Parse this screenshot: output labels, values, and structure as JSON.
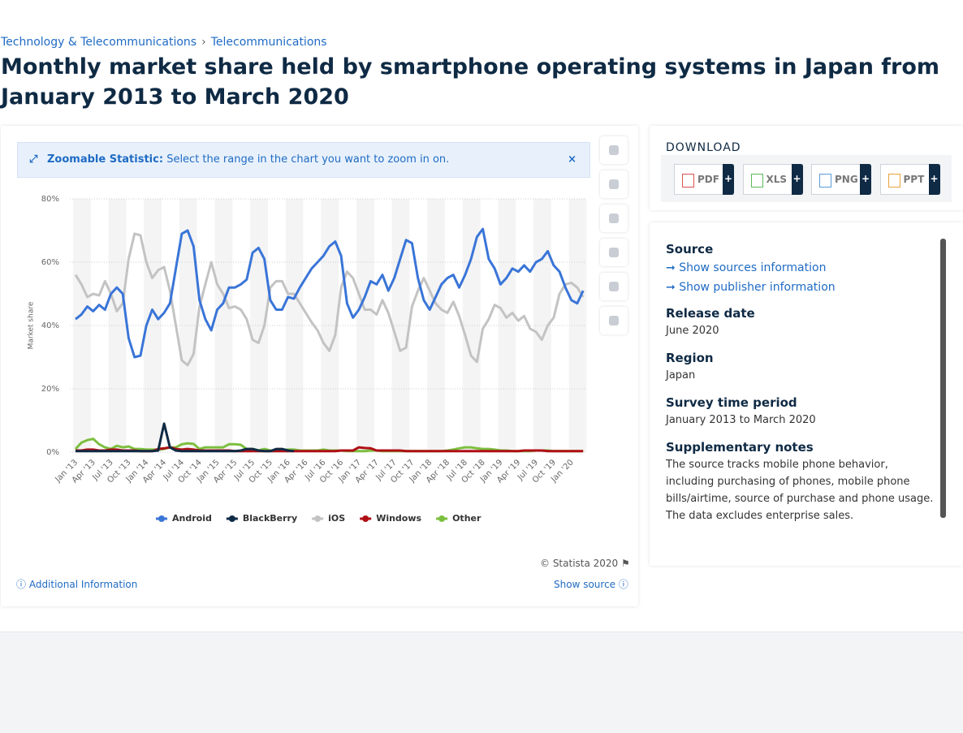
{
  "breadcrumb": [
    "Technology & Telecommunications",
    "Telecommunications"
  ],
  "title": "Monthly market share held by smartphone operating systems in Japan from January 2013 to March 2020",
  "zoom_banner": {
    "label": "Zoomable Statistic:",
    "text": "Select the range in the chart you want to zoom in on."
  },
  "chart_data": {
    "type": "line",
    "y_label": "Market share",
    "categories": [
      "Jan '13",
      null,
      null,
      "Apr '13",
      null,
      null,
      "Jul '13",
      null,
      null,
      "Oct '13",
      null,
      null,
      "Jan '14",
      null,
      null,
      "Apr '14",
      null,
      null,
      "Jul '14",
      null,
      null,
      "Oct '14",
      null,
      null,
      "Jan '15",
      null,
      null,
      "Apr '15",
      null,
      null,
      "Jul '15",
      null,
      null,
      "Oct '15",
      null,
      null,
      "Jan '16",
      null,
      null,
      "Apr '16",
      null,
      null,
      "Jul '16",
      null,
      null,
      "Oct '16",
      null,
      null,
      "Jan '17",
      null,
      null,
      "Apr '17",
      null,
      null,
      "Jul '17",
      null,
      null,
      "Oct '17",
      null,
      null,
      "Jan '18",
      null,
      null,
      "Apr '18",
      null,
      null,
      "Jul '18",
      null,
      null,
      "Oct '18",
      null,
      null,
      "Jan '19",
      null,
      null,
      "Apr '19",
      null,
      null,
      "Jul '19",
      null,
      null,
      "Oct '19",
      null,
      null,
      "Jan '20",
      null,
      null
    ],
    "series": [
      {
        "name": "Android",
        "color": "#3a75d8",
        "values": [
          42,
          43.5,
          46,
          44.5,
          46.5,
          45,
          50,
          52,
          50,
          36,
          30,
          30.5,
          40,
          45,
          42,
          44,
          47,
          58,
          69,
          70,
          65,
          48,
          42,
          38.5,
          45,
          47,
          52,
          52,
          53,
          54.5,
          63,
          64.5,
          61,
          48,
          45,
          45,
          49,
          48.5,
          52,
          55,
          58,
          60,
          62,
          65,
          66.5,
          62,
          47,
          42.5,
          45,
          49,
          54,
          53,
          56,
          51,
          55,
          61,
          67,
          66,
          55,
          48,
          45,
          49,
          53,
          55,
          56,
          52,
          56,
          61,
          68,
          70.5,
          61,
          58,
          53,
          55,
          58,
          57,
          59,
          57,
          60,
          61,
          63.5,
          59,
          57,
          52,
          48,
          47,
          51
        ]
      },
      {
        "name": "BlackBerry",
        "color": "#0f2a44",
        "values": [
          0.3,
          0.3,
          0.3,
          0.3,
          0.3,
          0.3,
          0.3,
          0.3,
          0.3,
          0.3,
          0.3,
          0.3,
          0.3,
          0.3,
          0.5,
          9,
          1.5,
          0.5,
          0.3,
          0.3,
          0.3,
          0.3,
          0.3,
          0.3,
          0.3,
          0.3,
          0.3,
          0.3,
          0.5,
          1,
          1,
          0.5,
          0.3,
          0.3,
          1,
          1,
          0.5,
          0.3,
          null,
          null,
          null,
          null,
          null,
          null,
          null,
          null,
          null,
          null,
          null,
          null,
          null,
          null,
          null,
          null,
          null,
          null,
          null,
          null,
          null,
          null,
          null,
          null,
          null,
          null,
          null,
          null,
          null,
          null,
          null,
          null,
          null,
          null,
          null,
          null,
          null,
          null,
          null,
          null,
          null,
          null,
          null,
          null,
          null,
          null,
          null,
          null,
          null
        ]
      },
      {
        "name": "iOS",
        "color": "#c3c3c3",
        "values": [
          56,
          53,
          49,
          50,
          49.5,
          54,
          50,
          44.5,
          47,
          61,
          69,
          68.5,
          60,
          55,
          57.5,
          58.5,
          51,
          40,
          29,
          27.5,
          31,
          46,
          53,
          60,
          53,
          50,
          45.5,
          46,
          45,
          42,
          35.5,
          34.5,
          40,
          52,
          54,
          54,
          50,
          50,
          47,
          44,
          41,
          38.5,
          34.5,
          32,
          37,
          52,
          57,
          55,
          50,
          45,
          45,
          43.5,
          48,
          44,
          38,
          32,
          33,
          46,
          51,
          55,
          51,
          47,
          45,
          44,
          47.5,
          43,
          37,
          30.5,
          28.5,
          39,
          42,
          46.5,
          45.5,
          42.5,
          44,
          41.5,
          43,
          39,
          38,
          35.5,
          40,
          42.5,
          50,
          53,
          53.5,
          52,
          49
        ]
      },
      {
        "name": "Windows",
        "color": "#b00e15",
        "values": [
          0.5,
          0.5,
          0.8,
          0.8,
          0.5,
          0.5,
          0.8,
          0.8,
          0.5,
          0.5,
          0.5,
          0.3,
          0.3,
          0.3,
          1,
          1.2,
          1.5,
          1,
          0.8,
          1,
          0.8,
          0.5,
          0.5,
          0.5,
          0.5,
          0.5,
          0.5,
          0.3,
          0.3,
          0.3,
          0.3,
          0.3,
          0.3,
          0.3,
          0.3,
          0.3,
          0.3,
          0.3,
          0.3,
          0.3,
          0.3,
          0.3,
          0.3,
          0.3,
          0.3,
          0.5,
          0.5,
          0.5,
          1.5,
          1.3,
          1.2,
          0.5,
          0.5,
          0.5,
          0.5,
          0.5,
          0.3,
          0.3,
          0.3,
          0.3,
          0.3,
          0.3,
          0.3,
          0.3,
          0.3,
          0.3,
          0.3,
          0.3,
          0.3,
          0.3,
          0.3,
          0.3,
          0.3,
          0.3,
          0.3,
          0.3,
          0.5,
          0.5,
          0.5,
          0.5,
          0.3,
          0.3,
          0.3,
          0.3,
          0.3,
          0.3,
          0.3
        ]
      },
      {
        "name": "Other",
        "color": "#7cbf3f",
        "values": [
          1,
          3,
          3.8,
          4.2,
          2.5,
          1.5,
          1,
          2,
          1.5,
          1.8,
          1,
          1,
          0.8,
          0.8,
          0.8,
          1,
          1.5,
          1.5,
          2.5,
          2.8,
          2.6,
          1,
          1.5,
          1.5,
          1.5,
          1.5,
          2.5,
          2.5,
          2.3,
          1,
          1,
          0.5,
          1,
          0.5,
          0.5,
          0.5,
          0.8,
          0.8,
          0.5,
          0.5,
          0.5,
          0.5,
          0.8,
          0.5,
          0.5,
          0.5,
          0.3,
          0.3,
          0.3,
          0.3,
          0.5,
          0.5,
          0.3,
          0.3,
          0.3,
          0.3,
          0.3,
          0.3,
          0.3,
          0.3,
          0.3,
          0.3,
          0.3,
          0.5,
          0.8,
          1.2,
          1.5,
          1.5,
          1.2,
          1,
          1,
          0.8,
          0.5,
          0.5,
          0.3,
          0.3,
          0.3,
          0.3,
          0.5,
          0.5,
          0.5,
          0.3,
          0.3,
          0.3,
          0.3,
          0.3,
          0.3
        ]
      }
    ],
    "ylim": [
      0,
      80
    ],
    "yticks": [
      {
        "value": 0,
        "label": "0%"
      },
      {
        "value": 20,
        "label": "20%"
      },
      {
        "value": 40,
        "label": "40%"
      },
      {
        "value": 60,
        "label": "60%"
      },
      {
        "value": 80,
        "label": "80%"
      }
    ],
    "grid": true,
    "legend": "bottom"
  },
  "credit": "© Statista 2020",
  "additional_info": "Additional Information",
  "show_source": "Show source",
  "download": {
    "title": "DOWNLOAD",
    "formats": [
      "PDF",
      "XLS",
      "PNG",
      "PPT"
    ]
  },
  "details": {
    "source_heading": "Source",
    "source_link": "Show sources information",
    "publisher_link": "Show publisher information",
    "release_heading": "Release date",
    "release": "June 2020",
    "region_heading": "Region",
    "region": "Japan",
    "period_heading": "Survey time period",
    "period": "January 2013 to March 2020",
    "notes_heading": "Supplementary notes",
    "notes": "The source tracks mobile phone behavior, including purchasing of phones, mobile phone bills/airtime, source of purchase and phone usage. The data excludes enterprise sales."
  }
}
